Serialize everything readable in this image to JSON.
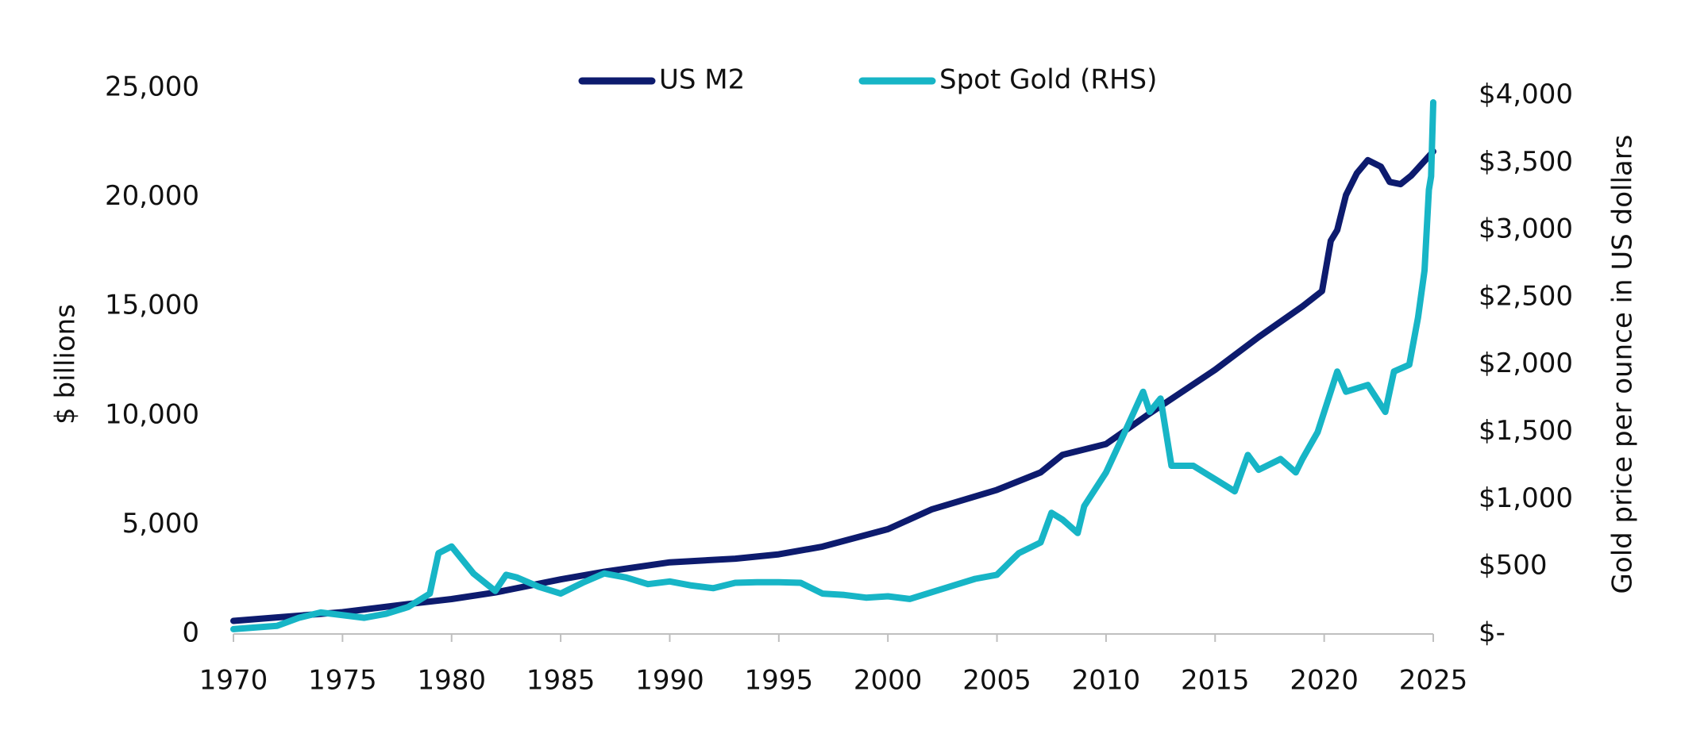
{
  "chart_data": {
    "type": "line",
    "xlim": [
      1970,
      2025
    ],
    "xticks": [
      1970,
      1975,
      1980,
      1985,
      1990,
      1995,
      2000,
      2005,
      2010,
      2015,
      2020,
      2025
    ],
    "ylim": [
      0,
      25000
    ],
    "yticks": [
      0,
      {
        "value": 5000,
        "label": "5,000"
      },
      {
        "value": 10000,
        "label": "10,000"
      },
      {
        "value": 15000,
        "label": "15,000"
      },
      {
        "value": 20000,
        "label": "20,000"
      },
      {
        "value": 25000,
        "label": "25,000"
      }
    ],
    "y2lim": [
      0,
      4056
    ],
    "y2ticks": [
      {
        "value": 0,
        "label": "$-"
      },
      {
        "value": 500,
        "label": "$500"
      },
      {
        "value": 1000,
        "label": "$1,000"
      },
      {
        "value": 1500,
        "label": "$1,500"
      },
      {
        "value": 2000,
        "label": "$2,000"
      },
      {
        "value": 2500,
        "label": "$2,500"
      },
      {
        "value": 3000,
        "label": "$3,000"
      },
      {
        "value": 3500,
        "label": "$3,500"
      },
      {
        "value": 4000,
        "label": "$4,000"
      }
    ],
    "ylabel": "$ billions",
    "y2label": "Gold price per ounce in US dollars",
    "grid": false,
    "legend": "top",
    "series": [
      {
        "name": "US M2",
        "color": "#0d1b6e",
        "x": [
          1970,
          1972,
          1975,
          1978,
          1980,
          1982,
          1985,
          1987,
          1990,
          1993,
          1995,
          1997,
          2000,
          2002,
          2005,
          2007,
          2008,
          2010,
          2012,
          2015,
          2017,
          2019,
          2019.9,
          2020.3,
          2020.6,
          2021,
          2021.5,
          2022,
          2022.6,
          2023,
          2023.5,
          2024,
          2025
        ],
        "values": [
          600,
          760,
          1000,
          1370,
          1600,
          1900,
          2500,
          2850,
          3280,
          3450,
          3650,
          4000,
          4800,
          5700,
          6600,
          7400,
          8200,
          8700,
          10100,
          12100,
          13600,
          15000,
          15700,
          18000,
          18500,
          20100,
          21100,
          21700,
          21400,
          20700,
          20600,
          21000,
          22100
        ]
      },
      {
        "name": "Spot Gold (RHS)",
        "color": "#17b5c6",
        "axis": "y2",
        "x": [
          1970,
          1972,
          1973,
          1974,
          1976,
          1977,
          1978,
          1979,
          1979.4,
          1980,
          1981,
          1982,
          1982.5,
          1983,
          1984,
          1985,
          1986,
          1987,
          1988,
          1989,
          1990,
          1991,
          1992,
          1993,
          1994,
          1995,
          1996,
          1997,
          1998,
          1999,
          2000,
          2001,
          2002,
          2003,
          2004,
          2005,
          2006,
          2007,
          2007.5,
          2008,
          2008.7,
          2009,
          2010,
          2011,
          2011.7,
          2012,
          2012.5,
          2013,
          2014,
          2015,
          2015.9,
          2016.5,
          2017,
          2018,
          2018.7,
          2019,
          2019.7,
          2020.6,
          2021,
          2022,
          2022.8,
          2023.2,
          2023.9,
          2024.3,
          2024.6,
          2024.8,
          2024.9,
          2025
        ],
        "values": [
          36,
          60,
          120,
          160,
          120,
          150,
          200,
          300,
          600,
          650,
          450,
          320,
          440,
          420,
          350,
          300,
          380,
          450,
          420,
          370,
          390,
          360,
          340,
          380,
          385,
          385,
          380,
          300,
          290,
          270,
          280,
          260,
          310,
          360,
          410,
          440,
          600,
          680,
          900,
          850,
          750,
          950,
          1200,
          1550,
          1800,
          1650,
          1750,
          1250,
          1250,
          1150,
          1060,
          1330,
          1220,
          1300,
          1200,
          1300,
          1500,
          1950,
          1800,
          1850,
          1650,
          1950,
          2000,
          2350,
          2700,
          3300,
          3400,
          3950
        ]
      }
    ]
  }
}
